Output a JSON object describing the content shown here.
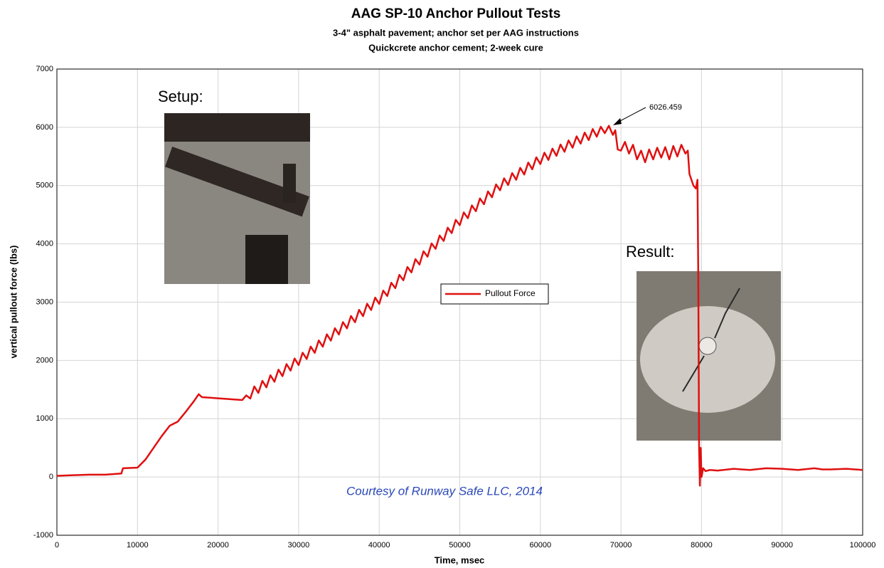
{
  "chart_data": {
    "type": "line",
    "title": "AAG SP-10 Anchor Pullout Tests",
    "subtitle": [
      "3-4\" asphalt pavement; anchor set per AAG instructions",
      "Quickcrete anchor cement; 2-week cure"
    ],
    "xlabel": "Time, msec",
    "ylabel": "vertical pullout force (lbs)",
    "annotations": {
      "peak": "6026.459",
      "credit": "Courtesy of Runway Safe LLC, 2014",
      "setup": "Setup:",
      "result": "Result:"
    },
    "xlim": [
      0,
      100000
    ],
    "ylim": [
      -1000,
      7000
    ],
    "xticks": [
      0,
      10000,
      20000,
      30000,
      40000,
      50000,
      60000,
      70000,
      80000,
      90000,
      100000
    ],
    "yticks": [
      -1000,
      0,
      1000,
      2000,
      3000,
      4000,
      5000,
      6000,
      7000
    ],
    "grid": true,
    "legend": "center",
    "x": [
      0,
      2000,
      4000,
      6000,
      8000,
      8200,
      10000,
      11000,
      12000,
      13000,
      14000,
      15000,
      16000,
      17000,
      17600,
      18000,
      19000,
      20000,
      21000,
      22000,
      23000,
      23500,
      24000,
      24500,
      25000,
      25500,
      26000,
      26500,
      27000,
      27500,
      28000,
      28500,
      29000,
      29500,
      30000,
      30500,
      31000,
      31500,
      32000,
      32500,
      33000,
      33500,
      34000,
      34500,
      35000,
      35500,
      36000,
      36500,
      37000,
      37500,
      38000,
      38500,
      39000,
      39500,
      40000,
      40500,
      41000,
      41500,
      42000,
      42500,
      43000,
      43500,
      44000,
      44500,
      45000,
      45500,
      46000,
      46500,
      47000,
      47500,
      48000,
      48500,
      49000,
      49500,
      50000,
      50500,
      51000,
      51500,
      52000,
      52500,
      53000,
      53500,
      54000,
      54500,
      55000,
      55500,
      56000,
      56500,
      57000,
      57500,
      58000,
      58500,
      59000,
      59500,
      60000,
      60500,
      61000,
      61500,
      62000,
      62500,
      63000,
      63500,
      64000,
      64500,
      65000,
      65500,
      66000,
      66500,
      67000,
      67500,
      68000,
      68500,
      69000,
      69300,
      69600,
      70000,
      70500,
      71000,
      71500,
      72000,
      72500,
      73000,
      73500,
      74000,
      74500,
      75000,
      75500,
      76000,
      76500,
      77000,
      77500,
      78000,
      78300,
      78500,
      79000,
      79300,
      79500,
      79600,
      79700,
      79800,
      79900,
      80000,
      80200,
      80500,
      81000,
      82000,
      84000,
      85000,
      86000,
      88000,
      90000,
      92000,
      94000,
      95000,
      96000,
      98000,
      100000
    ],
    "series": [
      {
        "name": "Pullout Force",
        "color": "#e01010",
        "values": [
          20,
          30,
          40,
          40,
          60,
          150,
          160,
          300,
          500,
          700,
          880,
          950,
          1120,
          1300,
          1420,
          1370,
          1360,
          1350,
          1340,
          1330,
          1320,
          1400,
          1346,
          1554,
          1442,
          1650,
          1538,
          1746,
          1634,
          1842,
          1730,
          1937,
          1825,
          2033,
          1920,
          2133,
          2025,
          2238,
          2130,
          2343,
          2235,
          2448,
          2340,
          2553,
          2445,
          2658,
          2550,
          2763,
          2655,
          2868,
          2760,
          2973,
          2865,
          3078,
          2970,
          3198,
          3105,
          3333,
          3240,
          3468,
          3375,
          3603,
          3510,
          3738,
          3645,
          3873,
          3780,
          4008,
          3915,
          4143,
          4050,
          4278,
          4185,
          4413,
          4320,
          4540,
          4440,
          4660,
          4560,
          4780,
          4680,
          4900,
          4800,
          5020,
          4920,
          5125,
          5010,
          5215,
          5100,
          5305,
          5190,
          5395,
          5280,
          5485,
          5370,
          5565,
          5440,
          5635,
          5510,
          5705,
          5580,
          5775,
          5650,
          5845,
          5720,
          5910,
          5780,
          5970,
          5840,
          6010,
          5900,
          6026.459,
          5870,
          5950,
          5620,
          5600,
          5750,
          5550,
          5700,
          5450,
          5600,
          5400,
          5620,
          5450,
          5650,
          5480,
          5660,
          5450,
          5680,
          5500,
          5700,
          5550,
          5600,
          5200,
          5000,
          4950,
          5100,
          3400,
          500,
          -150,
          500,
          0,
          150,
          100,
          120,
          110,
          140,
          130,
          120,
          150,
          140,
          120,
          150,
          130,
          130,
          140,
          120
        ]
      }
    ]
  }
}
